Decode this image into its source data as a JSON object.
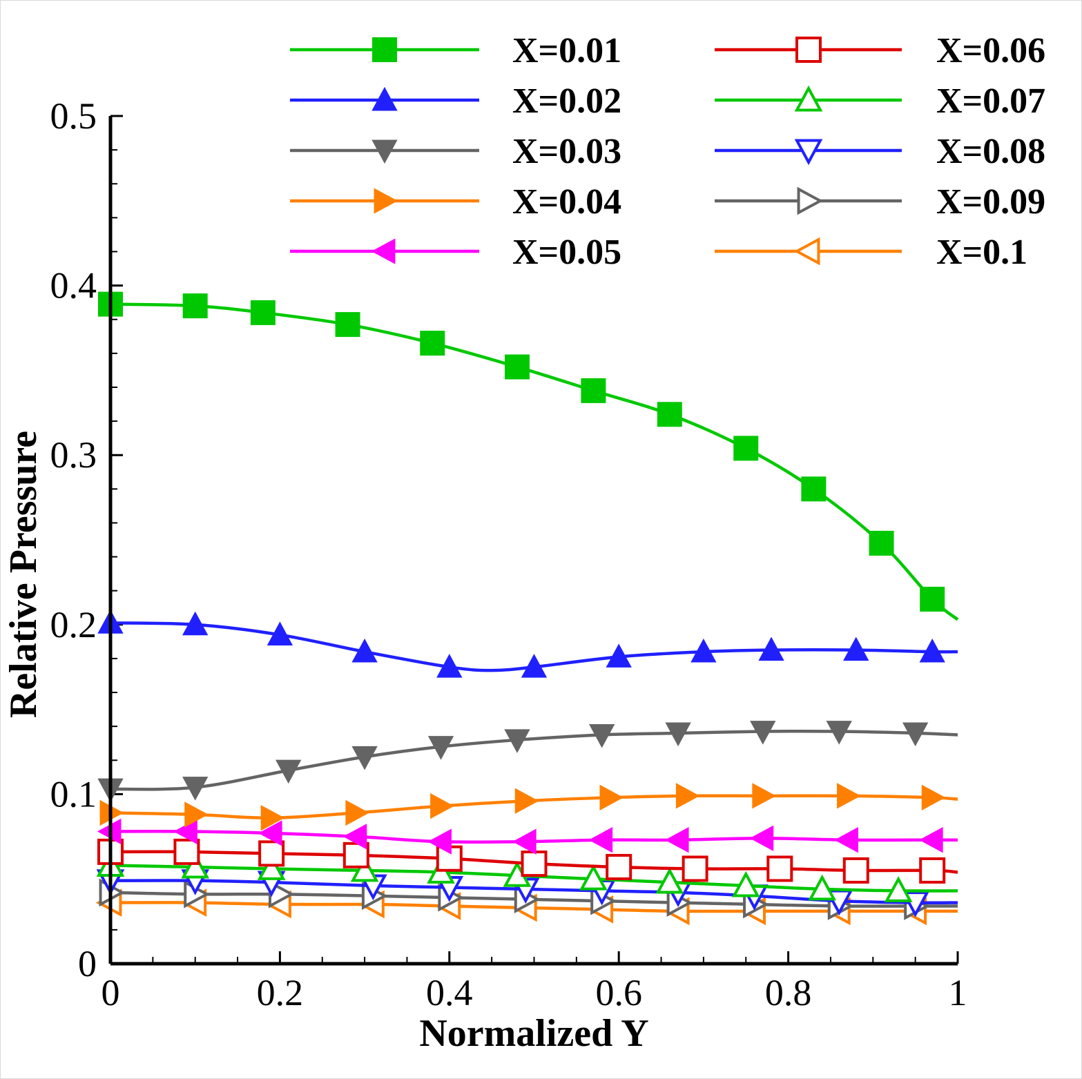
{
  "chart_data": {
    "type": "line",
    "title": "",
    "xlabel": "Normalized Y",
    "ylabel": "Relative Pressure",
    "xlim": [
      0,
      1
    ],
    "ylim": [
      0,
      0.5
    ],
    "xticks": [
      "0",
      "0.2",
      "0.4",
      "0.6",
      "0.8",
      "1"
    ],
    "yticks": [
      "0",
      "0.1",
      "0.2",
      "0.3",
      "0.4",
      "0.5"
    ],
    "grid": false,
    "legend_position": "top",
    "series": [
      {
        "name": "X=0.01",
        "color": "#00c800",
        "marker": "square-filled",
        "x": [
          0,
          0.1,
          0.18,
          0.28,
          0.38,
          0.48,
          0.57,
          0.66,
          0.75,
          0.83,
          0.91,
          0.97,
          1.0
        ],
        "y": [
          0.389,
          0.388,
          0.384,
          0.377,
          0.366,
          0.352,
          0.338,
          0.324,
          0.304,
          0.28,
          0.248,
          0.215,
          0.203
        ],
        "marker_x": [
          0,
          0.1,
          0.18,
          0.28,
          0.38,
          0.48,
          0.57,
          0.66,
          0.75,
          0.83,
          0.91,
          0.97
        ]
      },
      {
        "name": "X=0.02",
        "color": "#2020ff",
        "marker": "triangle-up-filled",
        "x": [
          0,
          0.1,
          0.2,
          0.3,
          0.4,
          0.45,
          0.5,
          0.6,
          0.7,
          0.78,
          0.88,
          0.97,
          1.0
        ],
        "y": [
          0.201,
          0.2,
          0.194,
          0.184,
          0.175,
          0.173,
          0.175,
          0.181,
          0.184,
          0.185,
          0.185,
          0.184,
          0.184
        ],
        "marker_x": [
          0,
          0.1,
          0.2,
          0.3,
          0.4,
          0.5,
          0.6,
          0.7,
          0.78,
          0.88,
          0.97
        ]
      },
      {
        "name": "X=0.03",
        "color": "#646464",
        "marker": "triangle-down-filled",
        "x": [
          0,
          0.1,
          0.21,
          0.3,
          0.39,
          0.48,
          0.58,
          0.67,
          0.77,
          0.86,
          0.95,
          1.0
        ],
        "y": [
          0.103,
          0.104,
          0.114,
          0.122,
          0.128,
          0.132,
          0.135,
          0.136,
          0.137,
          0.137,
          0.136,
          0.135
        ],
        "marker_x": [
          0,
          0.1,
          0.21,
          0.3,
          0.39,
          0.48,
          0.58,
          0.67,
          0.77,
          0.86,
          0.95
        ]
      },
      {
        "name": "X=0.04",
        "color": "#ff8000",
        "marker": "triangle-right-filled",
        "x": [
          0,
          0.1,
          0.19,
          0.29,
          0.39,
          0.49,
          0.59,
          0.68,
          0.77,
          0.87,
          0.97,
          1.0
        ],
        "y": [
          0.089,
          0.088,
          0.086,
          0.089,
          0.093,
          0.096,
          0.098,
          0.099,
          0.099,
          0.099,
          0.098,
          0.097
        ],
        "marker_x": [
          0,
          0.1,
          0.19,
          0.29,
          0.39,
          0.49,
          0.59,
          0.68,
          0.77,
          0.87,
          0.97
        ]
      },
      {
        "name": "X=0.05",
        "color": "#ff00ff",
        "marker": "triangle-left-filled",
        "x": [
          0,
          0.09,
          0.19,
          0.29,
          0.39,
          0.49,
          0.58,
          0.67,
          0.77,
          0.87,
          0.97,
          1.0
        ],
        "y": [
          0.078,
          0.078,
          0.077,
          0.075,
          0.072,
          0.072,
          0.073,
          0.073,
          0.074,
          0.073,
          0.073,
          0.073
        ],
        "marker_x": [
          0,
          0.09,
          0.19,
          0.29,
          0.39,
          0.49,
          0.58,
          0.67,
          0.77,
          0.87,
          0.97
        ]
      },
      {
        "name": "X=0.06",
        "color": "#dd0000",
        "marker": "square-open",
        "x": [
          0,
          0.09,
          0.19,
          0.29,
          0.4,
          0.5,
          0.6,
          0.69,
          0.79,
          0.88,
          0.97,
          1.0
        ],
        "y": [
          0.066,
          0.066,
          0.065,
          0.064,
          0.062,
          0.059,
          0.057,
          0.056,
          0.056,
          0.055,
          0.055,
          0.054
        ],
        "marker_x": [
          0,
          0.09,
          0.19,
          0.29,
          0.4,
          0.5,
          0.6,
          0.69,
          0.79,
          0.88,
          0.97
        ]
      },
      {
        "name": "X=0.07",
        "color": "#00c800",
        "marker": "triangle-up-open",
        "x": [
          0,
          0.1,
          0.19,
          0.3,
          0.39,
          0.48,
          0.57,
          0.66,
          0.75,
          0.84,
          0.93,
          1.0
        ],
        "y": [
          0.058,
          0.057,
          0.056,
          0.055,
          0.054,
          0.052,
          0.05,
          0.048,
          0.046,
          0.044,
          0.043,
          0.043
        ],
        "marker_x": [
          0,
          0.1,
          0.19,
          0.3,
          0.39,
          0.48,
          0.57,
          0.66,
          0.75,
          0.84,
          0.93
        ]
      },
      {
        "name": "X=0.08",
        "color": "#2020ff",
        "marker": "triangle-down-open",
        "x": [
          0,
          0.1,
          0.19,
          0.31,
          0.4,
          0.49,
          0.58,
          0.67,
          0.76,
          0.86,
          0.95,
          1.0
        ],
        "y": [
          0.049,
          0.049,
          0.048,
          0.046,
          0.045,
          0.044,
          0.043,
          0.042,
          0.04,
          0.037,
          0.036,
          0.036
        ],
        "marker_x": [
          0,
          0.1,
          0.19,
          0.31,
          0.4,
          0.49,
          0.58,
          0.67,
          0.76,
          0.86,
          0.95
        ]
      },
      {
        "name": "X=0.09",
        "color": "#646464",
        "marker": "triangle-right-open",
        "x": [
          0,
          0.1,
          0.2,
          0.31,
          0.4,
          0.49,
          0.58,
          0.67,
          0.76,
          0.86,
          0.95,
          1.0
        ],
        "y": [
          0.042,
          0.041,
          0.041,
          0.04,
          0.039,
          0.038,
          0.037,
          0.036,
          0.035,
          0.034,
          0.034,
          0.034
        ],
        "marker_x": [
          0,
          0.1,
          0.2,
          0.31,
          0.4,
          0.49,
          0.58,
          0.67,
          0.76,
          0.86,
          0.95
        ]
      },
      {
        "name": "X=0.1",
        "color": "#ff8000",
        "marker": "triangle-left-open",
        "x": [
          0,
          0.1,
          0.2,
          0.31,
          0.4,
          0.49,
          0.58,
          0.67,
          0.76,
          0.86,
          0.95,
          1.0
        ],
        "y": [
          0.036,
          0.036,
          0.035,
          0.035,
          0.034,
          0.033,
          0.032,
          0.031,
          0.031,
          0.031,
          0.031,
          0.031
        ],
        "marker_x": [
          0,
          0.1,
          0.2,
          0.31,
          0.4,
          0.49,
          0.58,
          0.67,
          0.76,
          0.86,
          0.95
        ]
      }
    ]
  }
}
